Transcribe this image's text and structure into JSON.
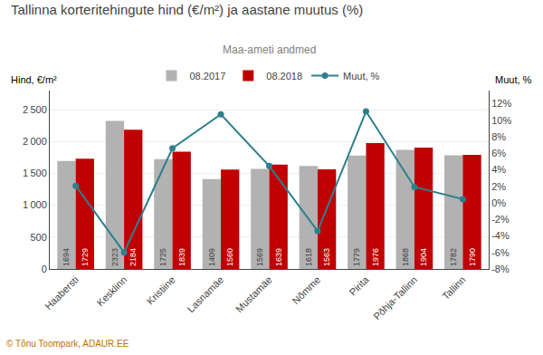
{
  "chart_data": {
    "type": "bar",
    "title": "Tallinna korteritehingute hind (€/m²) ja aastane muutus (%)",
    "subtitle": "Maa-ameti andmed",
    "ylabel": "Hind, €/m²",
    "y2label": "Muut, %",
    "categories": [
      "Haabersti",
      "Kesklinn",
      "Kristiine",
      "Lasnamäe",
      "Mustamäe",
      "Nõmme",
      "Pirita",
      "Põhja-Tallinn",
      "Tallinn"
    ],
    "series": [
      {
        "name": "08.2017",
        "type": "bar",
        "color": "#b2b2b2",
        "data_labels": true,
        "values": [
          1694,
          2323,
          1725,
          1409,
          1569,
          1618,
          1779,
          1868,
          1782
        ]
      },
      {
        "name": "08.2018",
        "type": "bar",
        "color": "#c00000",
        "data_labels": true,
        "values": [
          1729,
          2184,
          1839,
          1560,
          1639,
          1563,
          1976,
          1904,
          1790
        ]
      },
      {
        "name": "Muut, %",
        "type": "line",
        "axis": "y2",
        "color": "#2e7f8e",
        "marker": "circle",
        "line_style": "solid",
        "values": [
          2.07,
          -5.99,
          6.61,
          10.72,
          4.46,
          -3.4,
          11.07,
          1.93,
          0.45
        ]
      }
    ],
    "ylim": [
      0,
      2800
    ],
    "yticks": [
      0,
      500,
      {
        "value": 1000,
        "label": "1 000"
      },
      {
        "value": 1500,
        "label": "1 500"
      },
      {
        "value": 2000,
        "label": "2 000"
      },
      {
        "value": 2500,
        "label": "2 500"
      }
    ],
    "y2lim": [
      -8,
      13.6
    ],
    "y2ticks": [
      {
        "value": -8,
        "label": "-8%"
      },
      {
        "value": -6,
        "label": "-6%"
      },
      {
        "value": -4,
        "label": "-4%"
      },
      {
        "value": -2,
        "label": "-2%"
      },
      {
        "value": 0,
        "label": "0%"
      },
      {
        "value": 2,
        "label": "2%"
      },
      {
        "value": 4,
        "label": "4%"
      },
      {
        "value": 6,
        "label": "6%"
      },
      {
        "value": 8,
        "label": "8%"
      },
      {
        "value": 10,
        "label": "10%"
      },
      {
        "value": 12,
        "label": "12%"
      }
    ],
    "grid": true,
    "legend": "top",
    "annotations": [
      "© Tõnu Toompark, ADAUR.EE"
    ]
  }
}
